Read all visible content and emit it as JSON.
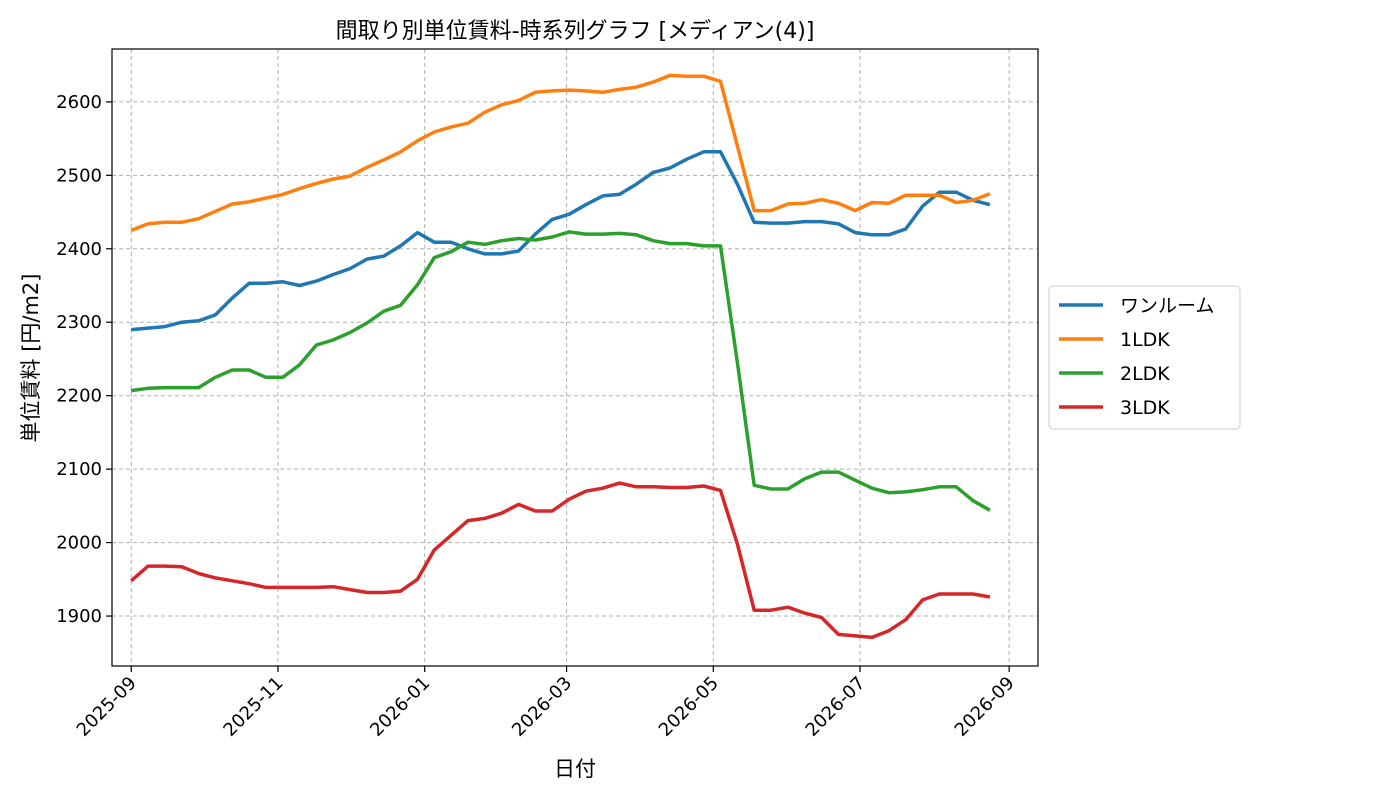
{
  "chart_data": {
    "type": "line",
    "title": "間取り別単位賃料-時系列グラフ [メディアン(4)]",
    "xlabel": "日付",
    "ylabel": "単位賃料 [円/m2]",
    "ylim": [
      1832,
      2672
    ],
    "yticks": [
      1900,
      2000,
      2100,
      2200,
      2300,
      2400,
      2500,
      2600
    ],
    "xlim": [
      "2025-08-24",
      "2026-09-13"
    ],
    "xticks": [
      "2025-09",
      "2025-11",
      "2026-01",
      "2026-03",
      "2026-05",
      "2026-07",
      "2026-09"
    ],
    "grid": true,
    "legend_position": "center-right outside",
    "x": [
      "2025-09-01",
      "2025-09-08",
      "2025-09-15",
      "2025-09-22",
      "2025-09-29",
      "2025-10-06",
      "2025-10-13",
      "2025-10-20",
      "2025-10-27",
      "2025-11-03",
      "2025-11-10",
      "2025-11-17",
      "2025-11-24",
      "2025-12-01",
      "2025-12-08",
      "2025-12-15",
      "2025-12-22",
      "2025-12-29",
      "2026-01-05",
      "2026-01-12",
      "2026-01-19",
      "2026-01-26",
      "2026-02-02",
      "2026-02-09",
      "2026-02-16",
      "2026-02-23",
      "2026-03-02",
      "2026-03-09",
      "2026-03-16",
      "2026-03-23",
      "2026-03-30",
      "2026-04-06",
      "2026-04-13",
      "2026-04-20",
      "2026-04-27",
      "2026-05-04",
      "2026-05-11",
      "2026-05-18",
      "2026-05-25",
      "2026-06-01",
      "2026-06-08",
      "2026-06-15",
      "2026-06-22",
      "2026-06-29",
      "2026-07-06",
      "2026-07-13",
      "2026-07-20",
      "2026-07-27",
      "2026-08-03",
      "2026-08-10",
      "2026-08-17",
      "2026-08-24"
    ],
    "series": [
      {
        "name": "ワンルーム",
        "color": "#1f77b4",
        "values": [
          2290,
          2292,
          2294,
          2300,
          2302,
          2310,
          2333,
          2353,
          2353,
          2355,
          2350,
          2356,
          2365,
          2373,
          2386,
          2390,
          2404,
          2422,
          2409,
          2409,
          2400,
          2393,
          2393,
          2397,
          2420,
          2440,
          2447,
          2460,
          2472,
          2474,
          2488,
          2504,
          2510,
          2522,
          2532,
          2532,
          2488,
          2436,
          2435,
          2435,
          2437,
          2437,
          2434,
          2422,
          2419,
          2419,
          2427,
          2458,
          2477,
          2477,
          2466,
          2460
        ]
      },
      {
        "name": "1LDK",
        "color": "#ff7f0e",
        "values": [
          2425,
          2434,
          2436,
          2436,
          2441,
          2451,
          2461,
          2464,
          2469,
          2474,
          2482,
          2489,
          2495,
          2499,
          2511,
          2521,
          2532,
          2547,
          2559,
          2566,
          2571,
          2586,
          2596,
          2602,
          2613,
          2615,
          2616,
          2615,
          2613,
          2617,
          2620,
          2627,
          2636,
          2635,
          2635,
          2628,
          2540,
          2452,
          2452,
          2461,
          2462,
          2467,
          2462,
          2452,
          2463,
          2462,
          2473,
          2473,
          2473,
          2463,
          2466,
          2475
        ]
      },
      {
        "name": "2LDK",
        "color": "#2ca02c",
        "values": [
          2207,
          2210,
          2211,
          2211,
          2211,
          2225,
          2235,
          2235,
          2225,
          2225,
          2242,
          2269,
          2276,
          2286,
          2299,
          2315,
          2323,
          2351,
          2388,
          2396,
          2409,
          2406,
          2411,
          2414,
          2412,
          2416,
          2423,
          2420,
          2420,
          2421,
          2419,
          2411,
          2407,
          2407,
          2404,
          2404,
          2245,
          2078,
          2073,
          2073,
          2087,
          2096,
          2096,
          2085,
          2074,
          2068,
          2069,
          2072,
          2076,
          2076,
          2057,
          2044
        ]
      },
      {
        "name": "3LDK",
        "color": "#d62728",
        "values": [
          1948,
          1968,
          1968,
          1967,
          1958,
          1952,
          1948,
          1944,
          1939,
          1939,
          1939,
          1939,
          1940,
          1936,
          1932,
          1932,
          1934,
          1950,
          1990,
          2010,
          2030,
          2033,
          2040,
          2052,
          2043,
          2043,
          2059,
          2070,
          2074,
          2081,
          2076,
          2076,
          2075,
          2075,
          2077,
          2071,
          1998,
          1908,
          1908,
          1912,
          1904,
          1898,
          1875,
          1873,
          1871,
          1880,
          1895,
          1922,
          1930,
          1930,
          1930,
          1926
        ]
      }
    ]
  }
}
